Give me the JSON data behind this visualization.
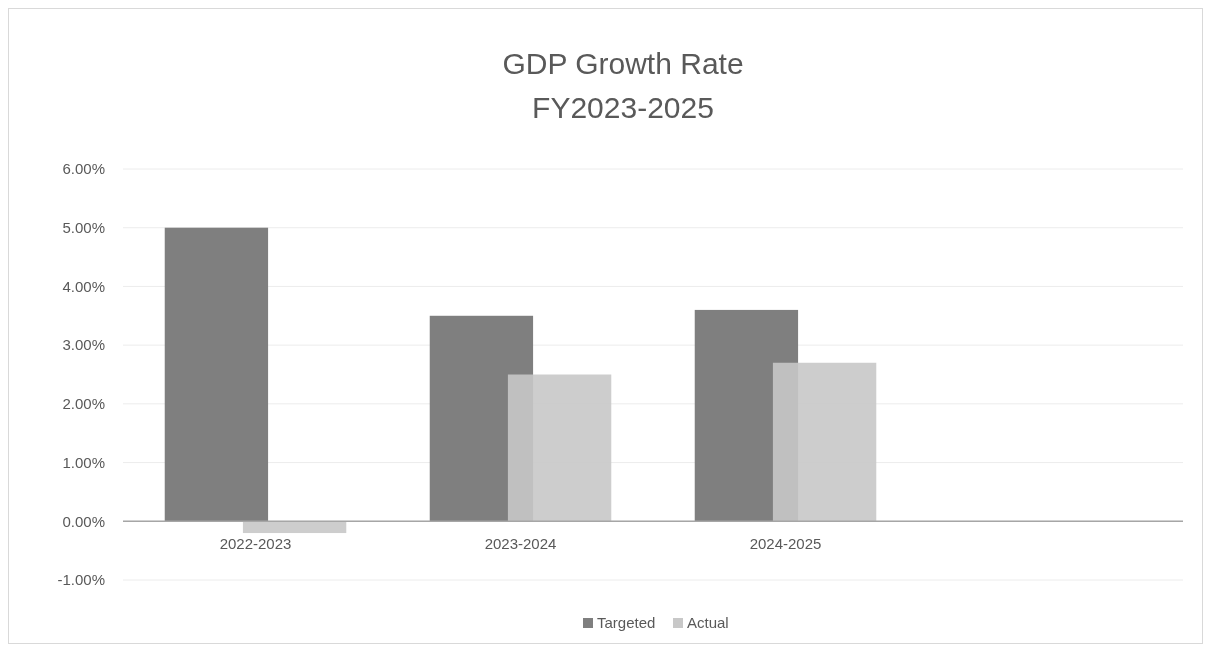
{
  "chart_data": {
    "type": "bar",
    "title": "GDP Growth Rate\nFY2023-2025",
    "categories": [
      "2022-2023",
      "2023-2024",
      "2024-2025",
      null
    ],
    "series": [
      {
        "name": "Targeted",
        "color": "#7f7f7f",
        "values": [
          5.0,
          3.5,
          3.6,
          null
        ]
      },
      {
        "name": "Actual",
        "color": "#c8c8c8",
        "values": [
          -0.2,
          2.5,
          2.7,
          null
        ]
      }
    ],
    "ylim": [
      -1,
      6
    ],
    "yticks": [
      {
        "value": -1,
        "label": "-1.00%"
      },
      {
        "value": 0,
        "label": "0.00%"
      },
      {
        "value": 1,
        "label": "1.00%"
      },
      {
        "value": 2,
        "label": "2.00%"
      },
      {
        "value": 3,
        "label": "3.00%"
      },
      {
        "value": 4,
        "label": "4.00%"
      },
      {
        "value": 5,
        "label": "5.00%"
      },
      {
        "value": 6,
        "label": "6.00%"
      }
    ],
    "grid": "y",
    "legend": "bottom"
  }
}
